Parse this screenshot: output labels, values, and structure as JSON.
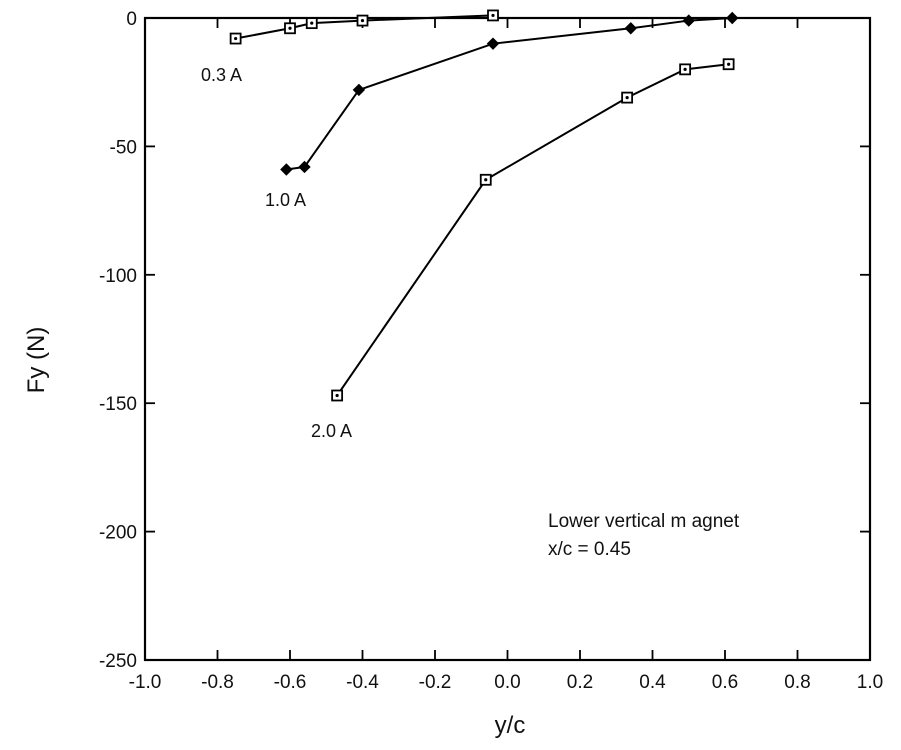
{
  "chart_data": {
    "type": "line",
    "title": "",
    "xlabel": "y/c",
    "ylabel": "Fy (N)",
    "xlim": [
      -1.0,
      1.0
    ],
    "ylim": [
      -250,
      0
    ],
    "xticks": [
      "-1.0",
      "-0.8",
      "-0.6",
      "-0.4",
      "-0.2",
      "0.0",
      "0.2",
      "0.4",
      "0.6",
      "0.8",
      "1.0"
    ],
    "yticks": [
      "0",
      "-50",
      "-100",
      "-150",
      "-200",
      "-250"
    ],
    "grid": false,
    "series": [
      {
        "name": "0.3 A",
        "marker": "open-square",
        "x": [
          -0.75,
          -0.6,
          -0.54,
          -0.4,
          -0.04
        ],
        "y": [
          -8,
          -4,
          -2,
          -1,
          1
        ]
      },
      {
        "name": "1.0 A",
        "marker": "filled-diamond",
        "x": [
          -0.61,
          -0.56,
          -0.41,
          -0.04,
          0.34,
          0.5,
          0.62
        ],
        "y": [
          -59,
          -58,
          -28,
          -10,
          -4,
          -1,
          0
        ]
      },
      {
        "name": "2.0 A",
        "marker": "bold-square",
        "x": [
          -0.47,
          -0.06,
          0.33,
          0.49,
          0.61
        ],
        "y": [
          -147,
          -63,
          -31,
          -20,
          -18
        ]
      }
    ],
    "annotations": [
      "Lower vertical m agnet",
      "x/c = 0.45"
    ]
  }
}
